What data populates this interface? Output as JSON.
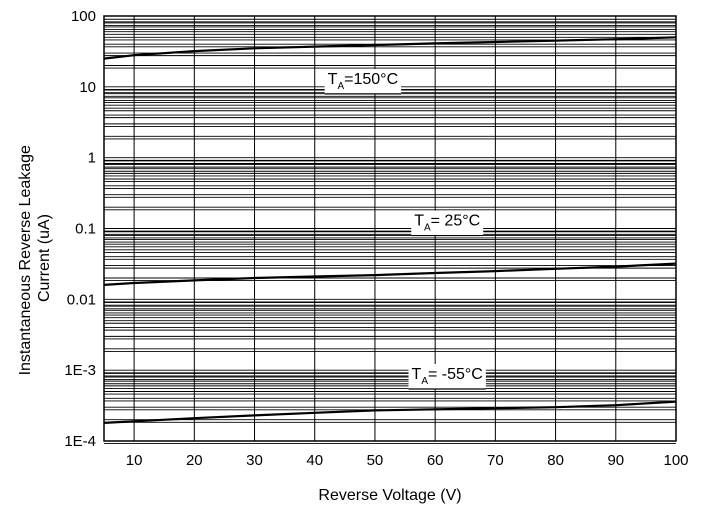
{
  "chart_data": {
    "type": "line",
    "title": "",
    "xlabel": "Reverse Voltage (V)",
    "ylabel_lines": [
      "Instantaneous Reverse Leakage",
      "Current (uA)"
    ],
    "xlim": [
      5,
      100
    ],
    "ylim": [
      0.0001,
      100
    ],
    "yscale": "log",
    "grid": true,
    "x_ticks": [
      10,
      20,
      30,
      40,
      50,
      60,
      70,
      80,
      90,
      100
    ],
    "y_ticks": [
      {
        "value": 100,
        "label": "100"
      },
      {
        "value": 10,
        "label": "10"
      },
      {
        "value": 1,
        "label": "1"
      },
      {
        "value": 0.1,
        "label": "0.1"
      },
      {
        "value": 0.01,
        "label": "0.01"
      },
      {
        "value": 0.001,
        "label": "1E-3"
      },
      {
        "value": 0.0001,
        "label": "1E-4"
      }
    ],
    "series": [
      {
        "annotation": {
          "prefix": "T",
          "sub": "A",
          "suffix": "=150°C",
          "x": 48,
          "y": 11
        },
        "x": [
          5,
          10,
          20,
          30,
          40,
          50,
          60,
          70,
          80,
          90,
          100
        ],
        "y": [
          25,
          28,
          32,
          35,
          37,
          39,
          41,
          43,
          45,
          47,
          50
        ]
      },
      {
        "annotation": {
          "prefix": "T",
          "sub": "A",
          "suffix": "=  25°C",
          "x": 62,
          "y": 0.11
        },
        "x": [
          5,
          10,
          20,
          30,
          40,
          50,
          60,
          70,
          80,
          90,
          100
        ],
        "y": [
          0.016,
          0.017,
          0.0185,
          0.02,
          0.021,
          0.022,
          0.0235,
          0.025,
          0.027,
          0.029,
          0.032
        ]
      },
      {
        "annotation": {
          "prefix": "T",
          "sub": "A",
          "suffix": "= -55°C",
          "x": 62,
          "y": 0.00075
        },
        "x": [
          5,
          10,
          20,
          30,
          40,
          50,
          60,
          70,
          80,
          90,
          100
        ],
        "y": [
          0.00018,
          0.00019,
          0.00021,
          0.00023,
          0.00025,
          0.00027,
          0.00028,
          0.00029,
          0.0003,
          0.00032,
          0.00036
        ]
      }
    ]
  }
}
